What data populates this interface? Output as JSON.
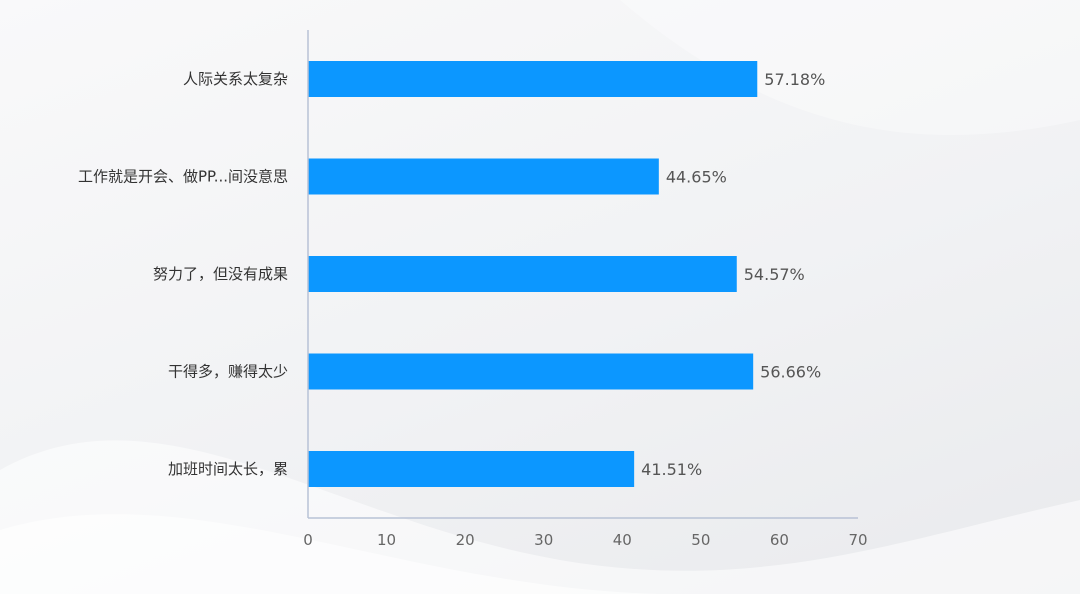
{
  "chart_data": {
    "type": "bar",
    "orientation": "horizontal",
    "categories": [
      "人际关系太复杂",
      "工作就是开会、做PP...间没意思",
      "努力了，但没有成果",
      "干得多，赚得太少",
      "加班时间太长，累"
    ],
    "values": [
      57.18,
      44.65,
      54.57,
      56.66,
      41.51
    ],
    "value_labels": [
      "57.18%",
      "44.65%",
      "54.57%",
      "56.66%",
      "41.51%"
    ],
    "xlim": [
      0,
      70
    ],
    "xticks": [
      0,
      10,
      20,
      30,
      40,
      50,
      60,
      70
    ],
    "xtick_labels": [
      "0",
      "10",
      "20",
      "30",
      "40",
      "50",
      "60",
      "70"
    ],
    "title": "",
    "xlabel": "",
    "ylabel": "",
    "grid": false,
    "legend": "none",
    "bar_color": "#0c97ff",
    "axis_color": "#b8c2d6"
  }
}
